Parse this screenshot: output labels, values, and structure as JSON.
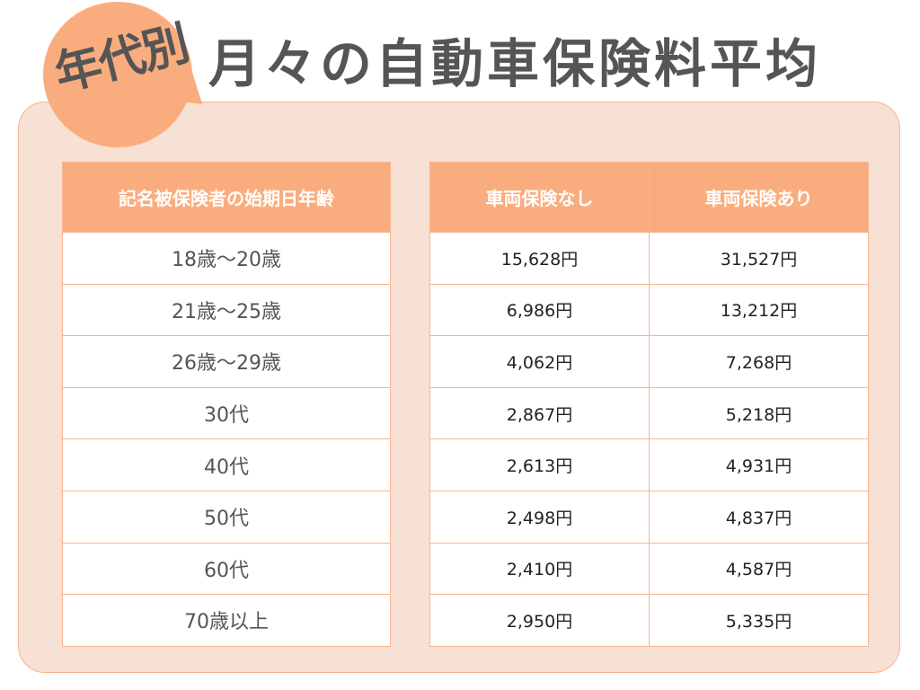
{
  "badge": "年代別",
  "title": "月々の自動車保険料平均",
  "colors": {
    "accent": "#f9ad7e",
    "panel_bg": "#f7e0d4",
    "border": "#f6b58f",
    "title_text": "#555555"
  },
  "table": {
    "headers": [
      "記名被保険者の始期日年齢",
      "車両保険なし",
      "車両保険あり"
    ],
    "rows": [
      {
        "age": "18歳〜20歳",
        "without": "15,628円",
        "with": "31,527円"
      },
      {
        "age": "21歳〜25歳",
        "without": "6,986円",
        "with": "13,212円"
      },
      {
        "age": "26歳〜29歳",
        "without": "4,062円",
        "with": "7,268円"
      },
      {
        "age": "30代",
        "without": "2,867円",
        "with": "5,218円"
      },
      {
        "age": "40代",
        "without": "2,613円",
        "with": "4,931円"
      },
      {
        "age": "50代",
        "without": "2,498円",
        "with": "4,837円"
      },
      {
        "age": "60代",
        "without": "2,410円",
        "with": "4,587円"
      },
      {
        "age": "70歳以上",
        "without": "2,950円",
        "with": "5,335円"
      }
    ]
  },
  "chart_data": {
    "type": "table",
    "title": "年代別 月々の自動車保険料平均",
    "columns": [
      "記名被保険者の始期日年齢",
      "車両保険なし",
      "車両保険あり"
    ],
    "categories": [
      "18歳〜20歳",
      "21歳〜25歳",
      "26歳〜29歳",
      "30代",
      "40代",
      "50代",
      "60代",
      "70歳以上"
    ],
    "series": [
      {
        "name": "車両保険なし",
        "values": [
          15628,
          6986,
          4062,
          2867,
          2613,
          2498,
          2410,
          2950
        ]
      },
      {
        "name": "車両保険あり",
        "values": [
          31527,
          13212,
          7268,
          5218,
          4931,
          4837,
          4587,
          5335
        ]
      }
    ],
    "unit": "円"
  }
}
